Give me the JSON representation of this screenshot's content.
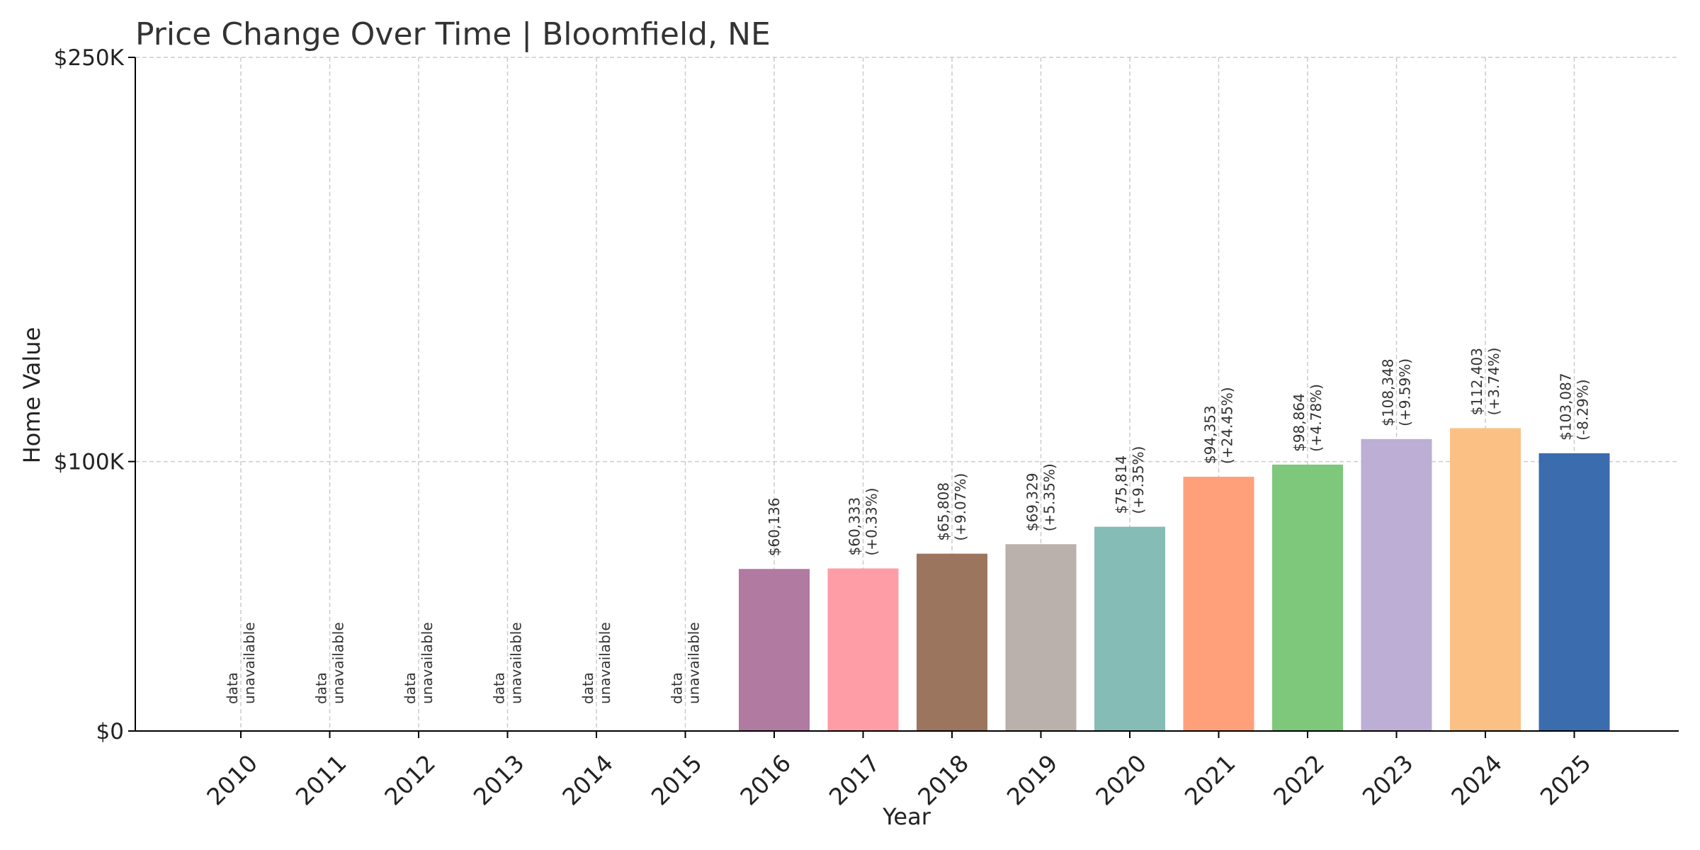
{
  "chart_data": {
    "type": "bar",
    "title": "Price Change Over Time | Bloomfield, NE",
    "xlabel": "Year",
    "ylabel": "Home Value",
    "ylim": [
      0,
      250000
    ],
    "yticks": [
      {
        "value": 0,
        "label": "$0"
      },
      {
        "value": 100000,
        "label": "$100K"
      },
      {
        "value": 250000,
        "label": "$250K"
      }
    ],
    "grid": true,
    "categories": [
      "2010",
      "2011",
      "2012",
      "2013",
      "2014",
      "2015",
      "2016",
      "2017",
      "2018",
      "2019",
      "2020",
      "2021",
      "2022",
      "2023",
      "2024",
      "2025"
    ],
    "values": [
      null,
      null,
      null,
      null,
      null,
      null,
      60136,
      60333,
      65808,
      69329,
      75814,
      94353,
      98864,
      108348,
      112403,
      103087
    ],
    "value_labels": [
      "",
      "",
      "",
      "",
      "",
      "",
      "$60,136",
      "$60,333",
      "$65,808",
      "$69,329",
      "$75,814",
      "$94,353",
      "$98,864",
      "$108,348",
      "$112,403",
      "$103,087"
    ],
    "change_labels": [
      "",
      "",
      "",
      "",
      "",
      "",
      "",
      "(+0.33%)",
      "(+9.07%)",
      "(+5.35%)",
      "(+9.35%)",
      "(+24.45%)",
      "(+4.78%)",
      "(+9.59%)",
      "(+3.74%)",
      "(-8.29%)"
    ],
    "unavailable_label": [
      "data",
      "unavailable"
    ],
    "colors": [
      "#b07aa1",
      "#b07aa1",
      "#b07aa1",
      "#b07aa1",
      "#b07aa1",
      "#b07aa1",
      "#b07aa1",
      "#ff9da7",
      "#9c755f",
      "#bab0ac",
      "#86bcb6",
      "#ffa07a",
      "#7dc87a",
      "#bcaed4",
      "#fbc084",
      "#3a6cae"
    ]
  }
}
